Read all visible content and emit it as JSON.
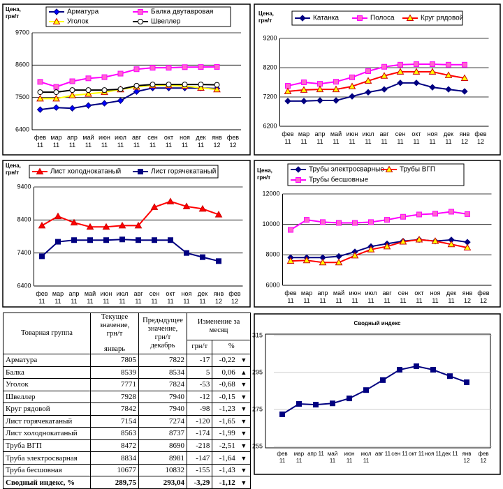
{
  "chart_data": [
    {
      "type": "line",
      "y_label": "Цена, грн/т",
      "categories": [
        "фев 11",
        "мар 11",
        "апр 11",
        "май 11",
        "июн 11",
        "июл 11",
        "авг 11",
        "сен 11",
        "окт 11",
        "ноя 11",
        "дек 11",
        "янв 12",
        "фев 12"
      ],
      "ylim": [
        6400,
        9700
      ],
      "yticks": [
        6400,
        7500,
        8600,
        9700
      ],
      "grid": true,
      "series": [
        {
          "name": "Арматура",
          "color": "#000080",
          "marker": "diamond",
          "marker_fill": "#0000ff",
          "marker_edge": "#000080",
          "values": [
            7085,
            7155,
            7130,
            7225,
            7300,
            7390,
            7700,
            7820,
            7820,
            7820,
            7822,
            7805,
            null
          ]
        },
        {
          "name": "Балка двутавровая",
          "color": "#ff00ff",
          "marker": "square",
          "marker_fill": "#ff66cc",
          "marker_edge": "#ff00ff",
          "values": [
            8030,
            7860,
            8050,
            8150,
            8190,
            8310,
            8460,
            8510,
            8510,
            8530,
            8534,
            8539,
            null
          ]
        },
        {
          "name": "Уголок",
          "color": "#ffff00",
          "marker": "triangle",
          "marker_fill": "#ffff00",
          "marker_edge": "#cc0000",
          "values": [
            7460,
            7460,
            7570,
            7620,
            7680,
            7770,
            7860,
            7910,
            7910,
            7890,
            7824,
            7771,
            null
          ]
        },
        {
          "name": "Швеллер",
          "color": "#000000",
          "marker": "circle",
          "marker_fill": "#ffffff",
          "marker_edge": "#000000",
          "values": [
            7680,
            7680,
            7750,
            7750,
            7750,
            7780,
            7900,
            7940,
            7940,
            7940,
            7940,
            7928,
            null
          ]
        }
      ]
    },
    {
      "type": "line",
      "y_label": "Цена, грн/т",
      "categories": [
        "фев 11",
        "мар 11",
        "апр 11",
        "май 11",
        "июн 11",
        "июл 11",
        "авг 11",
        "сен 11",
        "окт 11",
        "ноя 11",
        "дек 11",
        "янв 12",
        "фев 12"
      ],
      "ylim": [
        6200,
        9200
      ],
      "yticks": [
        6200,
        7200,
        8200,
        9200
      ],
      "grid": true,
      "series": [
        {
          "name": "Катанка",
          "color": "#000080",
          "marker": "diamond",
          "marker_fill": "#000080",
          "marker_edge": "#000080",
          "values": [
            7060,
            7060,
            7080,
            7080,
            7220,
            7360,
            7460,
            7680,
            7680,
            7530,
            7460,
            7390,
            null
          ]
        },
        {
          "name": "Полоса",
          "color": "#ff00ff",
          "marker": "square",
          "marker_fill": "#ff66cc",
          "marker_edge": "#ff00ff",
          "values": [
            7580,
            7700,
            7650,
            7720,
            7870,
            8080,
            8230,
            8300,
            8320,
            8320,
            8300,
            8300,
            null
          ]
        },
        {
          "name": "Круг рядовой",
          "color": "#ff0000",
          "marker": "triangle",
          "marker_fill": "#ffff00",
          "marker_edge": "#cc0000",
          "values": [
            7390,
            7440,
            7460,
            7460,
            7560,
            7750,
            7920,
            8060,
            8060,
            8060,
            7940,
            7842,
            null
          ]
        }
      ]
    },
    {
      "type": "line",
      "y_label": "Цена, грн/т",
      "categories": [
        "фев 11",
        "мар 11",
        "апр 11",
        "май 11",
        "июн 11",
        "июл 11",
        "авг 11",
        "сен 11",
        "окт 11",
        "ноя 11",
        "дек 11",
        "янв 12",
        "фев 12"
      ],
      "ylim": [
        6400,
        9400
      ],
      "yticks": [
        6400,
        7400,
        8400,
        9400
      ],
      "grid": true,
      "series": [
        {
          "name": "Лист холоднокатаный",
          "color": "#ff0000",
          "marker": "triangle",
          "marker_fill": "#ff0000",
          "marker_edge": "#cc0000",
          "values": [
            8230,
            8510,
            8320,
            8190,
            8190,
            8230,
            8230,
            8790,
            8960,
            8810,
            8737,
            8563,
            null
          ]
        },
        {
          "name": "Лист горячекатаный",
          "color": "#000080",
          "marker": "square",
          "marker_fill": "#000080",
          "marker_edge": "#000080",
          "values": [
            7300,
            7740,
            7790,
            7790,
            7790,
            7810,
            7790,
            7790,
            7790,
            7400,
            7274,
            7154,
            null
          ]
        }
      ]
    },
    {
      "type": "line",
      "y_label": "Цена, грн/т",
      "categories": [
        "фев 11",
        "мар 11",
        "апр 11",
        "май 11",
        "июн 11",
        "июл 11",
        "авг 11",
        "сен 11",
        "окт 11",
        "ноя 11",
        "дек 11",
        "янв 12",
        "фев 12"
      ],
      "ylim": [
        6000,
        12000
      ],
      "yticks": [
        6000,
        8000,
        10000,
        12000
      ],
      "grid": true,
      "series": [
        {
          "name": "Трубы электросварные",
          "color": "#000080",
          "marker": "diamond",
          "marker_fill": "#000080",
          "marker_edge": "#000080",
          "values": [
            7820,
            7820,
            7820,
            7900,
            8200,
            8550,
            8730,
            8900,
            9000,
            8900,
            8981,
            8834,
            null
          ]
        },
        {
          "name": "Трубы ВГП",
          "color": "#ff0000",
          "marker": "triangle",
          "marker_fill": "#ffff00",
          "marker_edge": "#cc0000",
          "values": [
            7600,
            7640,
            7500,
            7500,
            7950,
            8350,
            8550,
            8860,
            9000,
            8900,
            8690,
            8472,
            null
          ]
        },
        {
          "name": "Трубы бесшовные",
          "color": "#ff00ff",
          "marker": "square",
          "marker_fill": "#ff66cc",
          "marker_edge": "#ff00ff",
          "values": [
            9640,
            10300,
            10150,
            10100,
            10100,
            10150,
            10300,
            10500,
            10650,
            10700,
            10832,
            10677,
            null
          ]
        }
      ]
    },
    {
      "type": "line",
      "title": "Сводный индекс",
      "categories": [
        "фев 11",
        "мар 11",
        "апр 11",
        "май 11",
        "июн 11",
        "июл 11",
        "авг 11",
        "сен 11",
        "окт 11",
        "ноя 11",
        "дек 11",
        "янв 12",
        "фев 12"
      ],
      "ylim": [
        255,
        315
      ],
      "yticks": [
        255,
        275,
        295,
        315
      ],
      "grid": true,
      "color": "#000080",
      "marker": "square",
      "marker_fill": "#000080",
      "marker_edge": "#000080",
      "values": [
        272.4,
        278,
        277.6,
        278.3,
        281,
        285.5,
        290.9,
        296.5,
        298.4,
        296.5,
        293.04,
        289.75,
        null
      ]
    }
  ],
  "table": {
    "header": {
      "group": "Товарная группа",
      "current": "Текущее значение, грн/т",
      "current_month": "январь",
      "previous": "Предыдущее значение, грн/т",
      "previous_month": "декабрь",
      "change": "Изменение за месяц",
      "change_abs": "грн/т",
      "change_pct": "%"
    },
    "rows": [
      [
        "Арматура",
        "7805",
        "7822",
        "-17",
        "-0,22",
        "▼"
      ],
      [
        "Балка",
        "8539",
        "8534",
        "5",
        "0,06",
        "▲"
      ],
      [
        "Уголок",
        "7771",
        "7824",
        "-53",
        "-0,68",
        "▼"
      ],
      [
        "Швеллер",
        "7928",
        "7940",
        "-12",
        "-0,15",
        "▼"
      ],
      [
        "Круг рядовой",
        "7842",
        "7940",
        "-98",
        "-1,23",
        "▼"
      ],
      [
        "Лист горячекатаный",
        "7154",
        "7274",
        "-120",
        "-1,65",
        "▼"
      ],
      [
        "Лист холоднокатаный",
        "8563",
        "8737",
        "-174",
        "-1,99",
        "▼"
      ],
      [
        "Труба ВГП",
        "8472",
        "8690",
        "-218",
        "-2,51",
        "▼"
      ],
      [
        "Труба электросварная",
        "8834",
        "8981",
        "-147",
        "-1,64",
        "▼"
      ],
      [
        "Труба бесшовная",
        "10677",
        "10832",
        "-155",
        "-1,43",
        "▼"
      ],
      [
        "Сводный индекс, %",
        "289,75",
        "293,04",
        "-3,29",
        "-1,12",
        "▼"
      ]
    ]
  }
}
